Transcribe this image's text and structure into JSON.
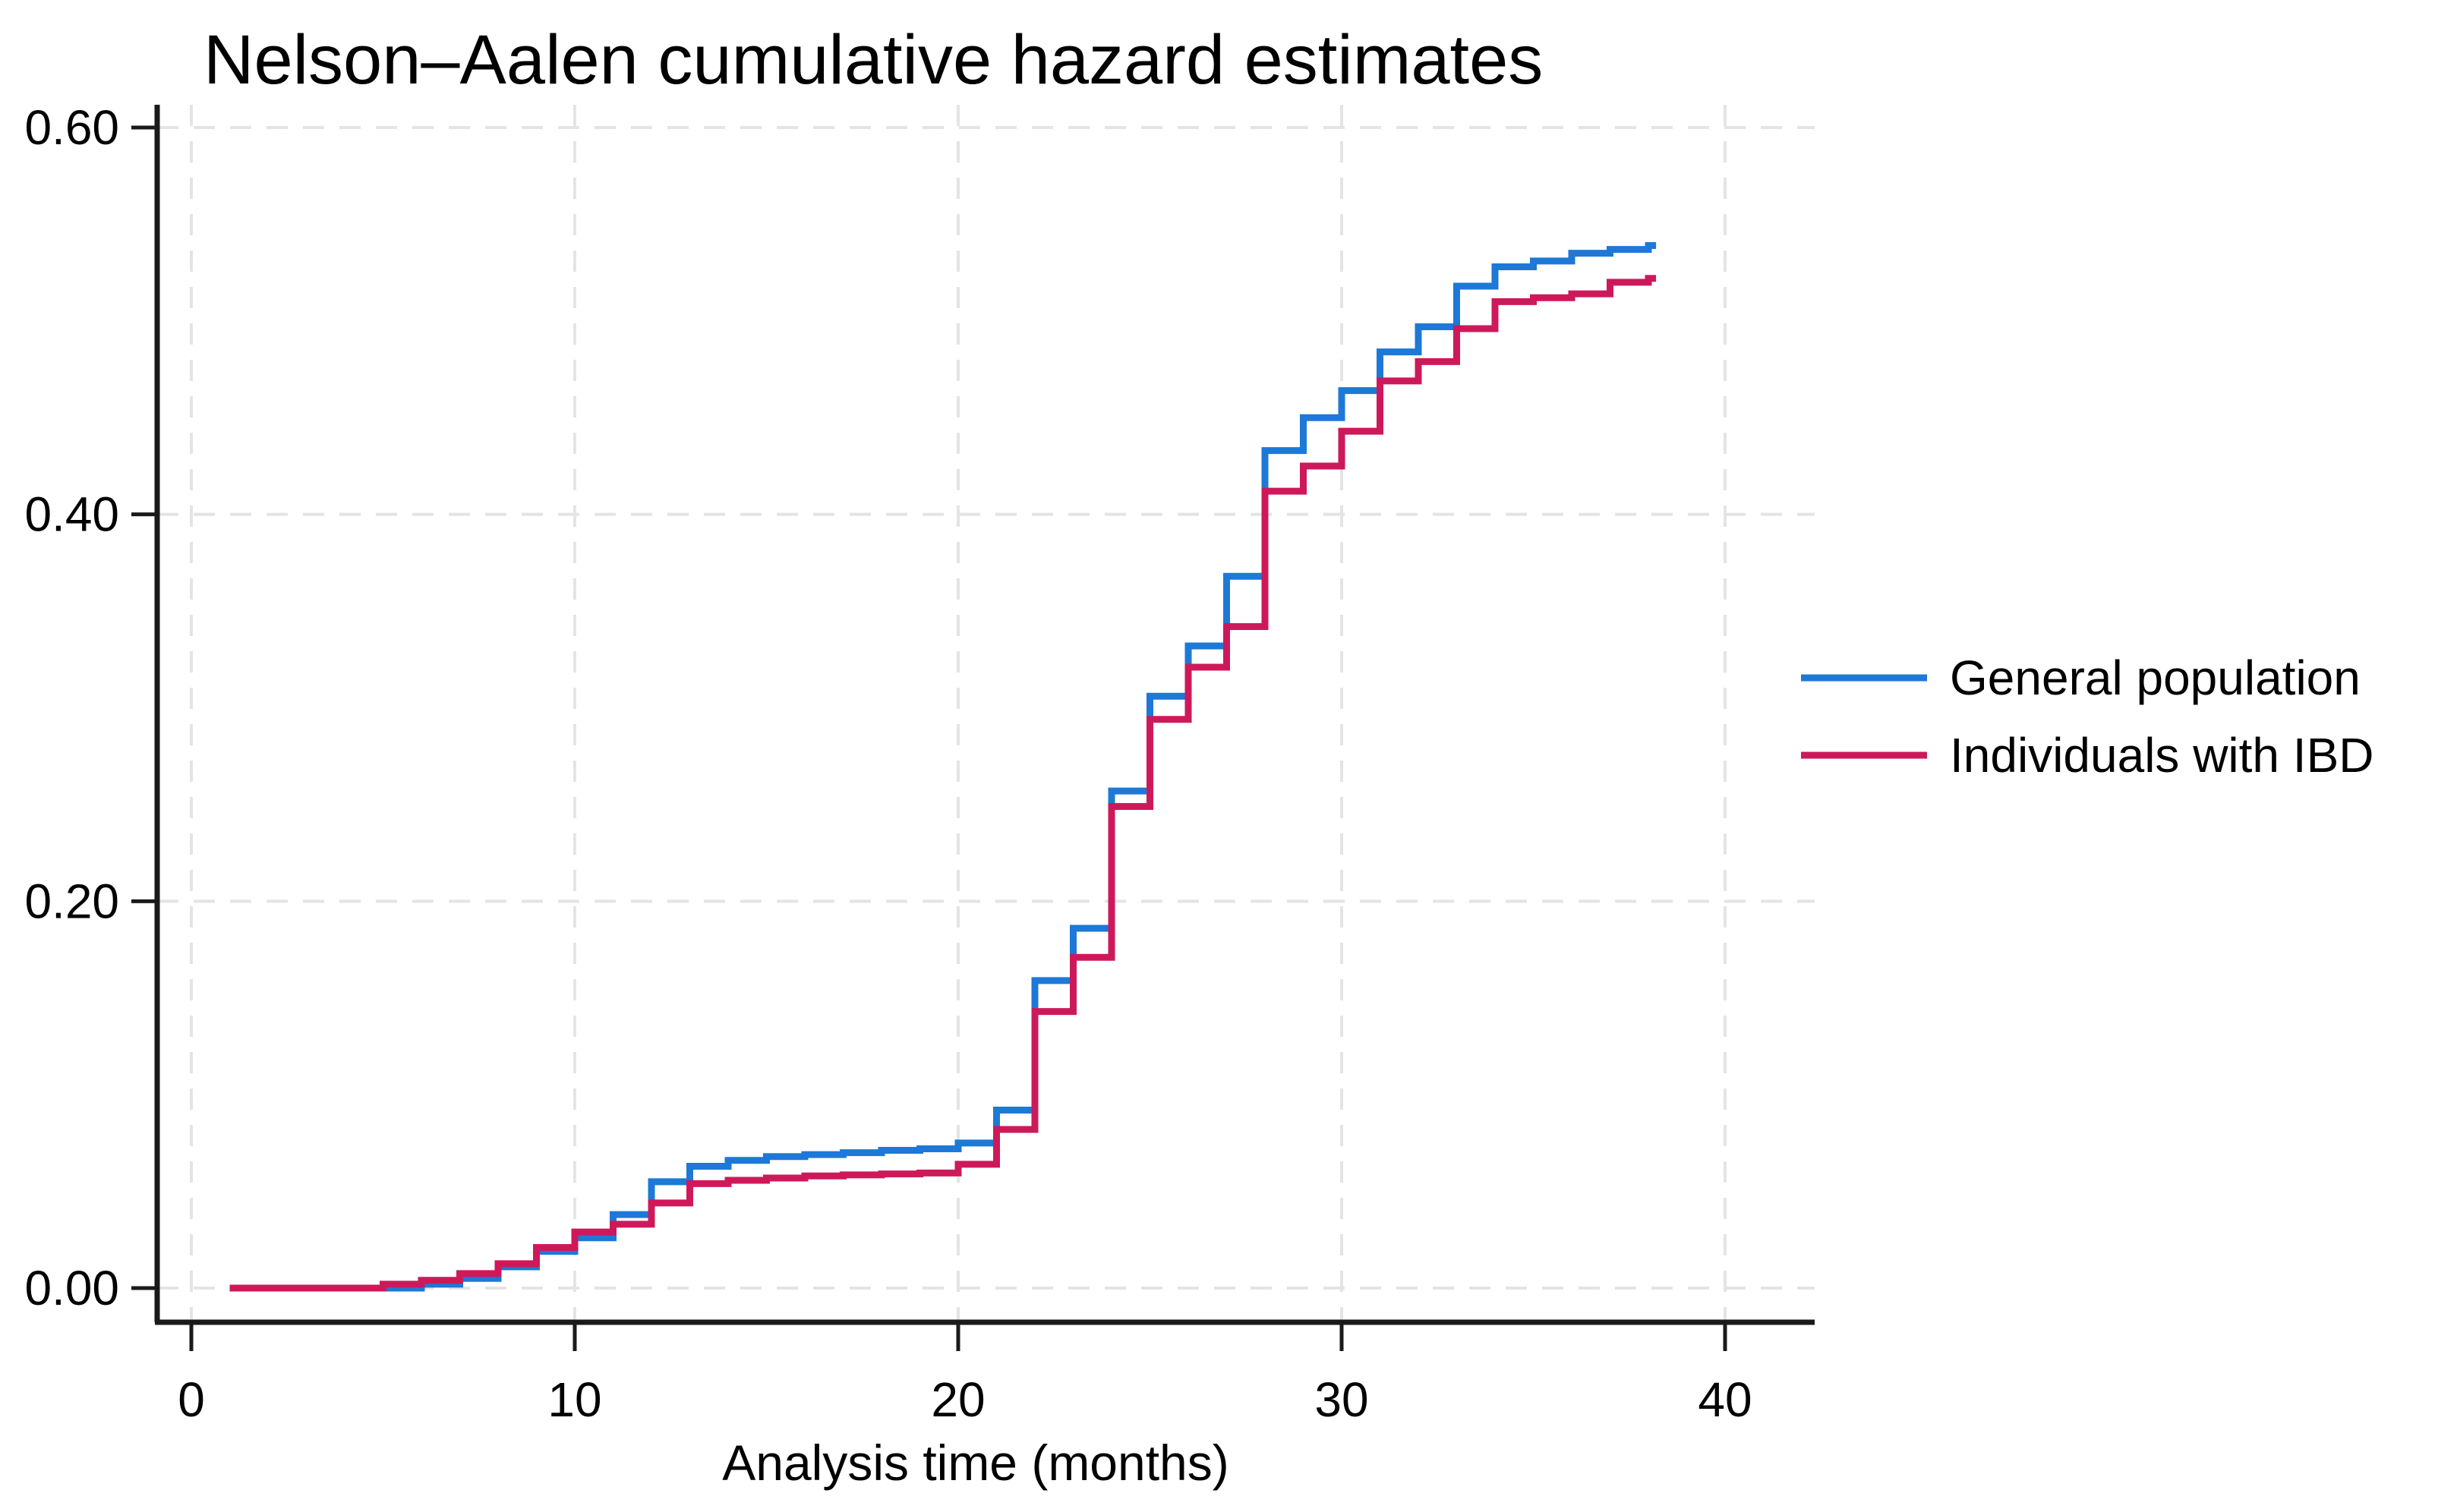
{
  "figure": {
    "title": "Nelson–Aalen cumulative hazard estimates",
    "x_axis_title": "Analysis time (months)"
  },
  "colors": {
    "blue": "#1E78D7",
    "red": "#CD195A",
    "grid": "#e4e4e4",
    "axis": "#1a1a1a",
    "text": "#000000",
    "background": "#ffffff"
  },
  "chart_data": {
    "type": "line",
    "subtype": "step-function",
    "title": "Nelson–Aalen cumulative hazard estimates",
    "xlabel": "Analysis time (months)",
    "ylabel": "",
    "xlim": [
      -0.9,
      42.3
    ],
    "ylim": [
      0,
      0.62
    ],
    "x_ticks": [
      0,
      10,
      20,
      30,
      40
    ],
    "y_ticks": [
      0.0,
      0.2,
      0.4,
      0.6
    ],
    "y_tick_labels": [
      "0.00",
      "0.20",
      "0.40",
      "0.60"
    ],
    "grid": "dashed-both-axes",
    "legend_position": "right-middle",
    "series": [
      {
        "name": "General population",
        "color": "#1E78D7",
        "points": [
          [
            1,
            0
          ],
          [
            6,
            0.002
          ],
          [
            7,
            0.005
          ],
          [
            8,
            0.011
          ],
          [
            9,
            0.019
          ],
          [
            10,
            0.026
          ],
          [
            11,
            0.038
          ],
          [
            12,
            0.055
          ],
          [
            13,
            0.063
          ],
          [
            14,
            0.066
          ],
          [
            15,
            0.068
          ],
          [
            16,
            0.069
          ],
          [
            17,
            0.07
          ],
          [
            18,
            0.0712
          ],
          [
            19,
            0.072
          ],
          [
            20,
            0.075
          ],
          [
            21,
            0.092
          ],
          [
            22,
            0.159
          ],
          [
            23,
            0.186
          ],
          [
            24,
            0.257
          ],
          [
            25,
            0.306
          ],
          [
            26,
            0.332
          ],
          [
            27,
            0.368
          ],
          [
            28,
            0.433
          ],
          [
            29,
            0.45
          ],
          [
            30,
            0.464
          ],
          [
            31,
            0.484
          ],
          [
            32,
            0.497
          ],
          [
            33,
            0.518
          ],
          [
            34,
            0.528
          ],
          [
            35,
            0.531
          ],
          [
            36,
            0.535
          ],
          [
            37,
            0.537
          ],
          [
            38,
            0.539
          ],
          [
            38.2,
            0.539
          ]
        ]
      },
      {
        "name": "Individuals with IBD",
        "color": "#CD195A",
        "points": [
          [
            1,
            0
          ],
          [
            5,
            0.002
          ],
          [
            6,
            0.004
          ],
          [
            7,
            0.0075
          ],
          [
            8,
            0.0126
          ],
          [
            9,
            0.021
          ],
          [
            10,
            0.029
          ],
          [
            11,
            0.033
          ],
          [
            12,
            0.044
          ],
          [
            13,
            0.054
          ],
          [
            14,
            0.0557
          ],
          [
            15,
            0.0569
          ],
          [
            16,
            0.058
          ],
          [
            17,
            0.0585
          ],
          [
            18,
            0.059
          ],
          [
            19,
            0.0595
          ],
          [
            20,
            0.064
          ],
          [
            21,
            0.082
          ],
          [
            22,
            0.143
          ],
          [
            23,
            0.171
          ],
          [
            24,
            0.249
          ],
          [
            25,
            0.294
          ],
          [
            26,
            0.321
          ],
          [
            27,
            0.342
          ],
          [
            28,
            0.412
          ],
          [
            29,
            0.425
          ],
          [
            30,
            0.443
          ],
          [
            31,
            0.469
          ],
          [
            32,
            0.479
          ],
          [
            33,
            0.496
          ],
          [
            34,
            0.51
          ],
          [
            35,
            0.512
          ],
          [
            36,
            0.514
          ],
          [
            37,
            0.52
          ],
          [
            38,
            0.522
          ],
          [
            38.2,
            0.522
          ]
        ]
      }
    ]
  }
}
